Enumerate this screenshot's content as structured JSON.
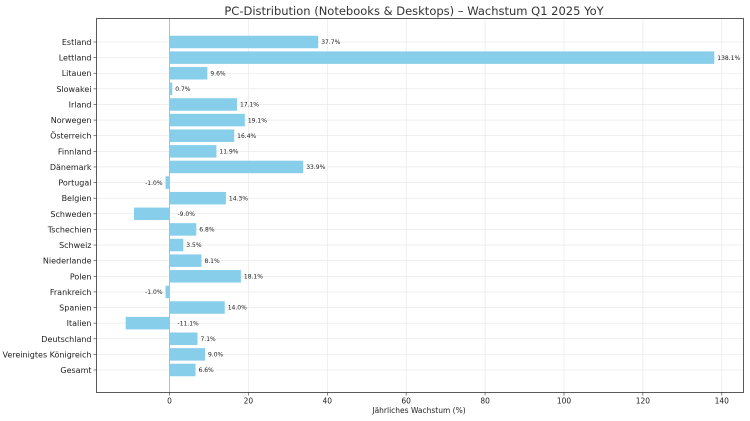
{
  "chart_data": {
    "type": "bar",
    "orientation": "horizontal",
    "title": "PC-Distribution (Notebooks & Desktops) – Wachstum Q1 2025 YoY",
    "xlabel": "Jährliches Wachstum (%)",
    "ylabel": "",
    "xlim": [
      -18.5,
      145.5
    ],
    "xticks": [
      0,
      20,
      40,
      60,
      80,
      100,
      120,
      140
    ],
    "grid": true,
    "bar_color": "#87ceeb",
    "categories": [
      "Estland",
      "Lettland",
      "Litauen",
      "Slowakei",
      "Irland",
      "Norwegen",
      "Österreich",
      "Finnland",
      "Dänemark",
      "Portugal",
      "Belgien",
      "Schweden",
      "Tschechien",
      "Schweiz",
      "Niederlande",
      "Polen",
      "Frankreich",
      "Spanien",
      "Italien",
      "Deutschland",
      "Vereinigtes Königreich",
      "Gesamt"
    ],
    "values": [
      37.7,
      138.1,
      9.6,
      0.7,
      17.1,
      19.1,
      16.4,
      11.9,
      33.9,
      -1.0,
      14.3,
      -9.0,
      6.8,
      3.5,
      8.1,
      18.1,
      -1.0,
      14.0,
      -11.1,
      7.1,
      9.0,
      6.6
    ],
    "value_labels": [
      "37.7%",
      "138.1%",
      "9.6%",
      "0.7%",
      "17.1%",
      "19.1%",
      "16.4%",
      "11.9%",
      "33.9%",
      "-1.0%",
      "14.3%",
      "-9.0%",
      "6.8%",
      "3.5%",
      "8.1%",
      "18.1%",
      "-1.0%",
      "14.0%",
      "-11.1%",
      "7.1%",
      "9.0%",
      "6.6%"
    ]
  }
}
